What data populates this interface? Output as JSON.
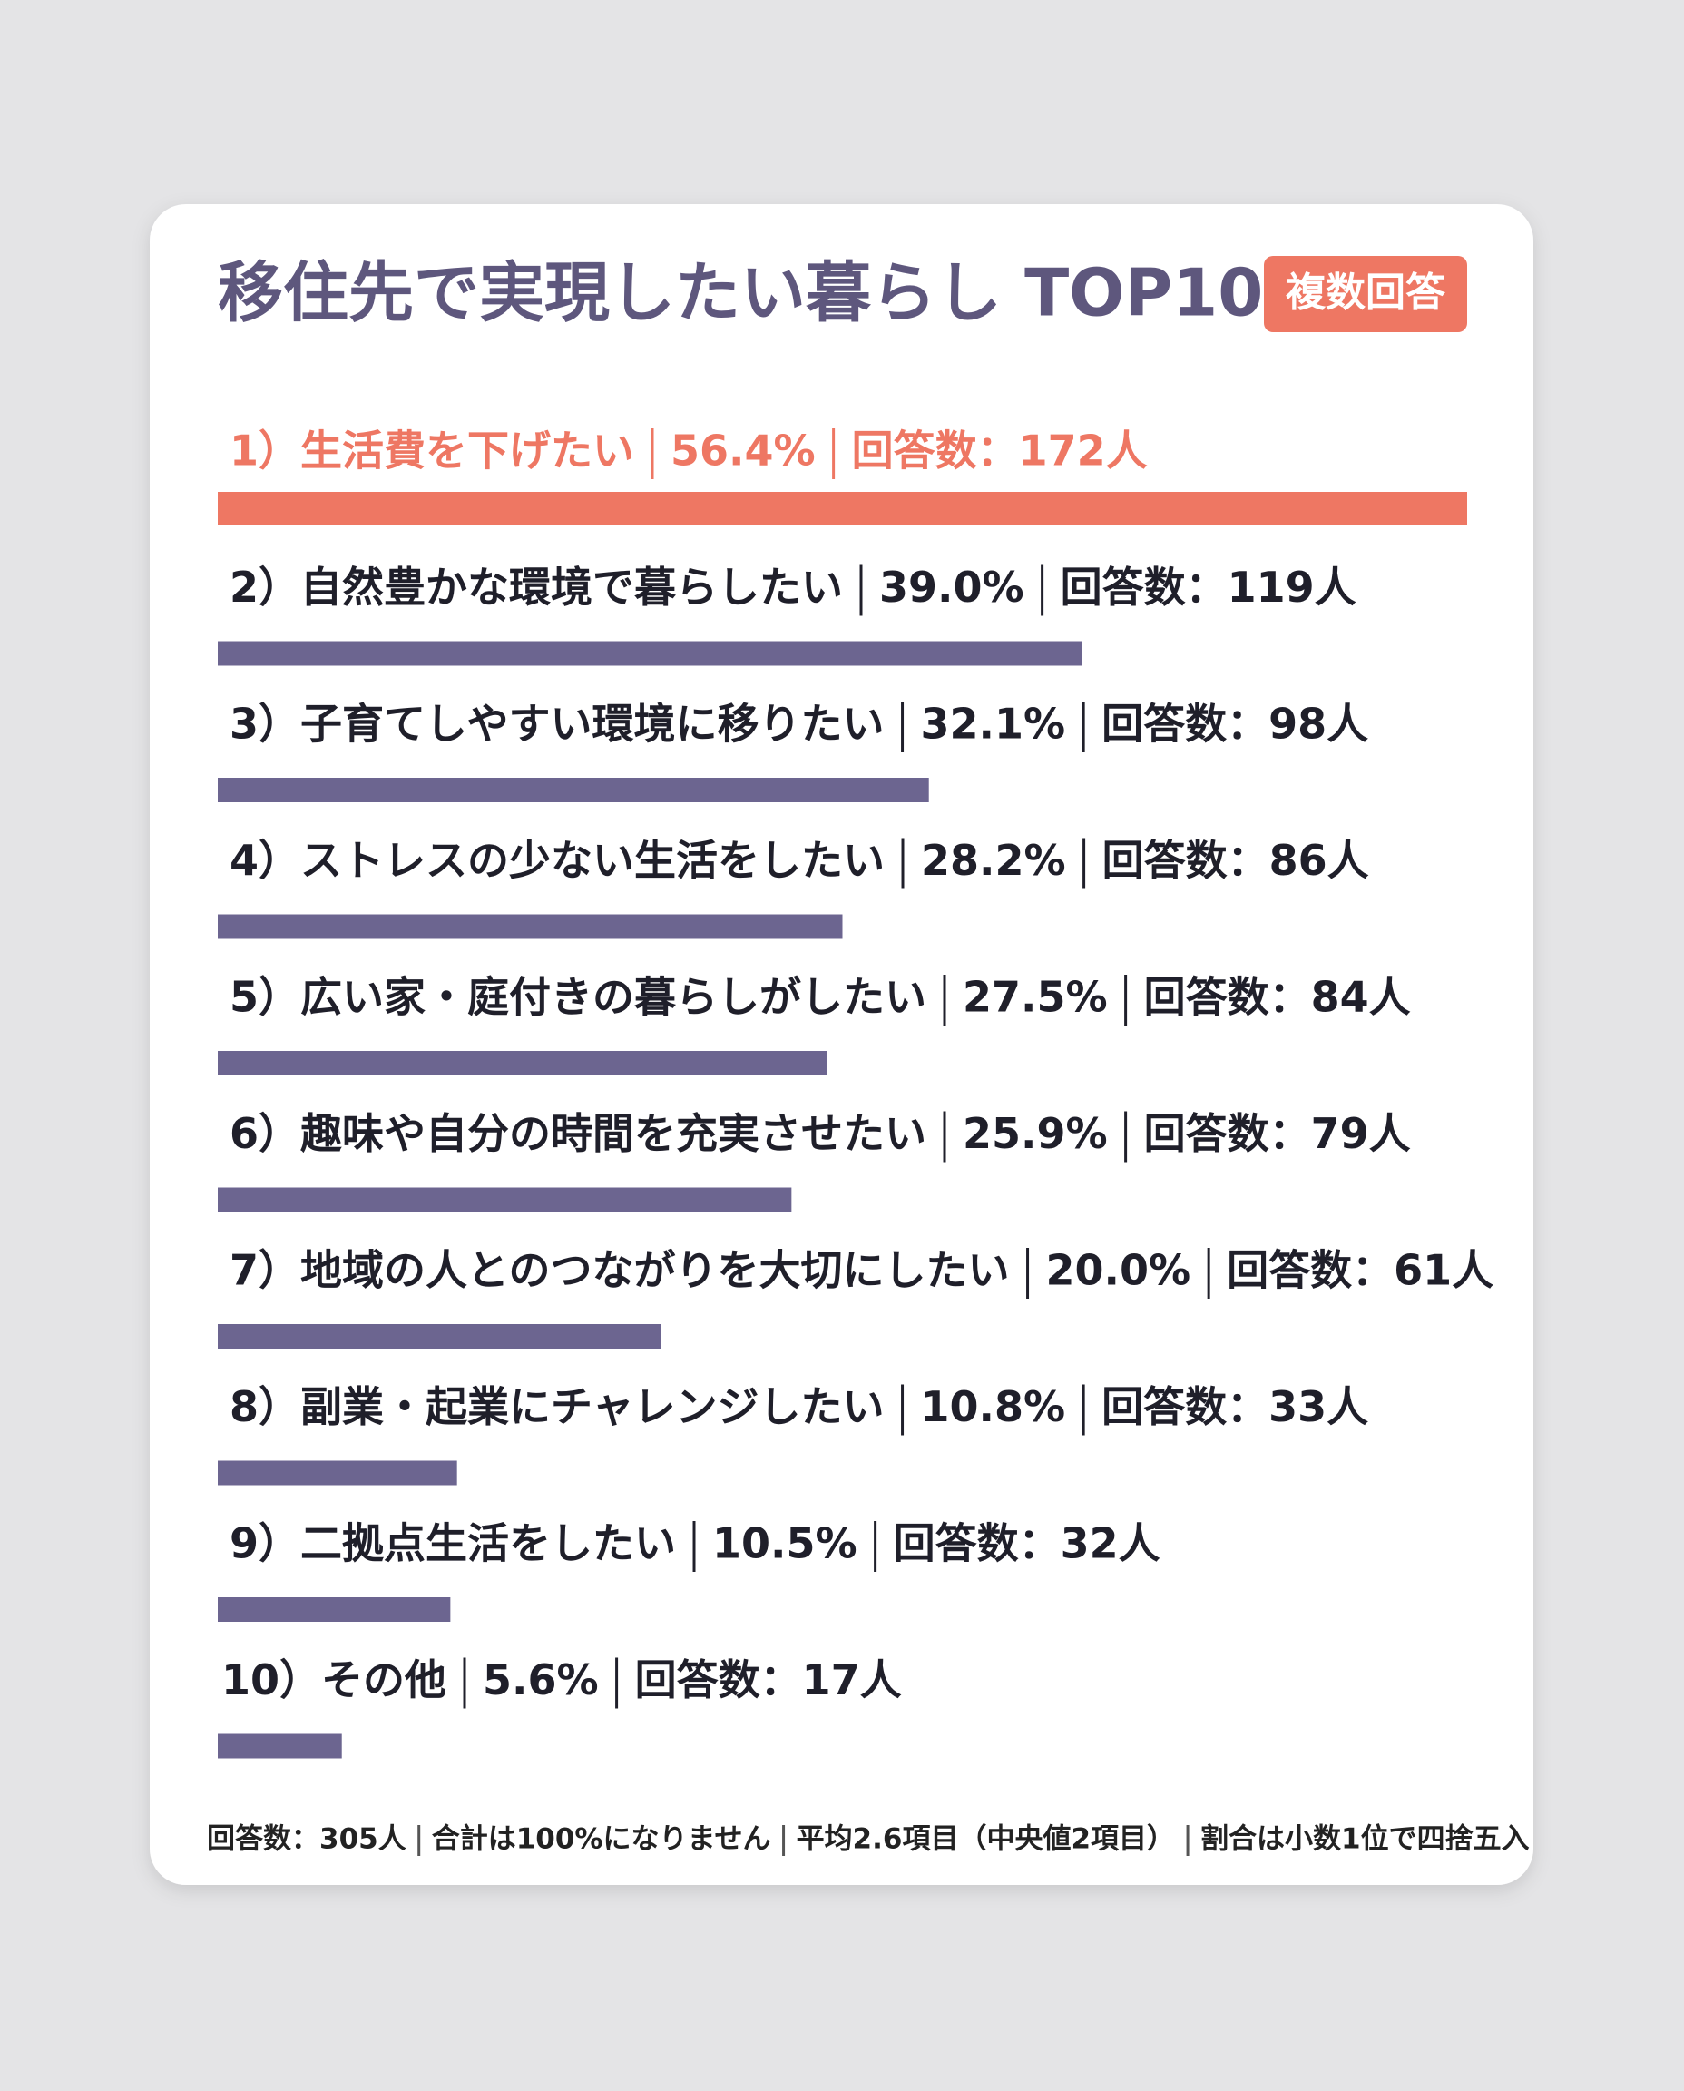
{
  "chart_data": {
    "type": "bar",
    "title": "移住先で実現したい暮らし TOP10",
    "badge": "複数回答",
    "categories": [
      "1）生活費を下げたい",
      "2）自然豊かな環境で暮らしたい",
      "3）子育てしやすい環境に移りたい",
      "4）ストレスの少ない生活をしたい",
      "5）広い家・庭付きの暮らしがしたい",
      "6）趣味や自分の時間を充実させたい",
      "7）地域の人とのつながりを大切にしたい",
      "8）副業・起業にチャレンジしたい",
      "9）二拠点生活をしたい",
      "10）その他"
    ],
    "values": [
      56.4,
      39.0,
      32.1,
      28.2,
      27.5,
      25.9,
      20.0,
      10.8,
      10.5,
      5.6
    ],
    "value_labels": [
      "56.4%",
      "39.0%",
      "32.1%",
      "28.2%",
      "27.5%",
      "25.9%",
      "20.0%",
      "10.8%",
      "10.5%",
      "5.6%"
    ],
    "count_labels": [
      "回答数：172人",
      "回答数：119人",
      "回答数：98人",
      "回答数：86人",
      "回答数：84人",
      "回答数：79人",
      "回答数：61人",
      "回答数：33人",
      "回答数：32人",
      "回答数：17人"
    ],
    "xlim": [
      0,
      56.4
    ],
    "highlight_color": "#ee7763",
    "color": "#6c6590",
    "notes": [
      "回答数：305人",
      "合計は100%になりません",
      "平均2.6項目（中央値2項目）",
      "割合は小数1位で四捨五入"
    ]
  }
}
